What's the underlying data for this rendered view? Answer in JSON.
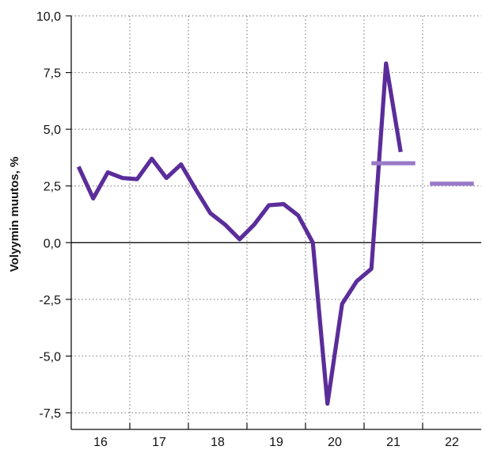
{
  "chart_data": {
    "type": "line",
    "ylabel": "Volyymin muutos, %",
    "ylim": [
      -7.5,
      10.0
    ],
    "yticks": [
      10.0,
      7.5,
      5.0,
      2.5,
      0.0,
      -2.5,
      -5.0,
      -7.5
    ],
    "ytick_labels": [
      "10,0",
      "7,5",
      "5,0",
      "2,5",
      "0,0",
      "-2,5",
      "-5,0",
      "-7,5"
    ],
    "x_categories": [
      "16",
      "17",
      "18",
      "19",
      "20",
      "21",
      "22"
    ],
    "xlim": [
      0,
      28
    ],
    "grid": true,
    "grid_style": "dotted",
    "zero_line": true,
    "series": [
      {
        "kind": "line",
        "color": "#5b2d9a",
        "points": [
          {
            "x": 0.5,
            "y": 3.35
          },
          {
            "x": 1.5,
            "y": 1.95
          },
          {
            "x": 2.5,
            "y": 3.1
          },
          {
            "x": 3.5,
            "y": 2.85
          },
          {
            "x": 4.5,
            "y": 2.8
          },
          {
            "x": 5.5,
            "y": 3.7
          },
          {
            "x": 6.5,
            "y": 2.85
          },
          {
            "x": 7.5,
            "y": 3.45
          },
          {
            "x": 8.5,
            "y": 2.35
          },
          {
            "x": 9.5,
            "y": 1.3
          },
          {
            "x": 10.5,
            "y": 0.8
          },
          {
            "x": 11.5,
            "y": 0.15
          },
          {
            "x": 12.5,
            "y": 0.8
          },
          {
            "x": 13.5,
            "y": 1.65
          },
          {
            "x": 14.5,
            "y": 1.7
          },
          {
            "x": 15.5,
            "y": 1.2
          },
          {
            "x": 16.5,
            "y": 0.0
          },
          {
            "x": 17.5,
            "y": -7.1
          },
          {
            "x": 18.5,
            "y": -2.7
          },
          {
            "x": 19.5,
            "y": -1.7
          },
          {
            "x": 20.5,
            "y": -1.15
          },
          {
            "x": 21.5,
            "y": 7.9
          },
          {
            "x": 22.5,
            "y": 4.0
          }
        ]
      },
      {
        "kind": "forecast-bar",
        "color": "#9a79c8",
        "x_start": 20.5,
        "x_end": 23.5,
        "y": 3.5
      },
      {
        "kind": "forecast-bar",
        "color": "#9a79c8",
        "x_start": 24.5,
        "x_end": 27.5,
        "y": 2.6
      }
    ]
  }
}
